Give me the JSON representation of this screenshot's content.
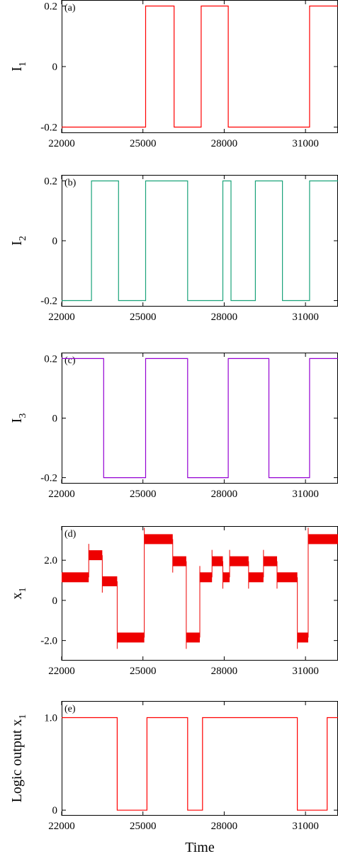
{
  "x_label": "Time",
  "chart_data": [
    {
      "type": "line",
      "panel_label": "(a)",
      "ylabel_main": "I",
      "ylabel_sub": "1",
      "color": "#ff0000",
      "xlim": [
        22000,
        32200
      ],
      "ylim": [
        -0.22,
        0.22
      ],
      "x_ticks": [
        22000,
        25000,
        28000,
        31000
      ],
      "x_tick_labels": [
        "22000",
        "25000",
        "28000",
        "31000"
      ],
      "y_ticks": [
        0.2,
        0,
        -0.2
      ],
      "y_tick_labels": [
        "0.2",
        "0",
        "-0.2"
      ],
      "x": [
        22000,
        25100,
        25100,
        26150,
        26150,
        27150,
        27150,
        28150,
        28150,
        31150,
        31150,
        32200
      ],
      "y": [
        -0.2,
        -0.2,
        0.2,
        0.2,
        -0.2,
        -0.2,
        0.2,
        0.2,
        -0.2,
        -0.2,
        0.2,
        0.2
      ],
      "noisy": false
    },
    {
      "type": "line",
      "panel_label": "(b)",
      "ylabel_main": "I",
      "ylabel_sub": "2",
      "color": "#1aa37a",
      "xlim": [
        22000,
        32200
      ],
      "ylim": [
        -0.22,
        0.22
      ],
      "x_ticks": [
        22000,
        25000,
        28000,
        31000
      ],
      "x_tick_labels": [
        "22000",
        "25000",
        "28000",
        "31000"
      ],
      "y_ticks": [
        0.2,
        0,
        -0.2
      ],
      "y_tick_labels": [
        "0.2",
        "0",
        "-0.2"
      ],
      "x": [
        22000,
        23100,
        23100,
        24100,
        24100,
        25100,
        25100,
        26650,
        26650,
        27950,
        27950,
        28250,
        28250,
        29150,
        29150,
        30150,
        30150,
        31150,
        31150,
        32200
      ],
      "y": [
        -0.2,
        -0.2,
        0.2,
        0.2,
        -0.2,
        -0.2,
        0.2,
        0.2,
        -0.2,
        -0.2,
        0.2,
        0.2,
        -0.2,
        -0.2,
        0.2,
        0.2,
        -0.2,
        -0.2,
        0.2,
        0.2
      ],
      "noisy": false
    },
    {
      "type": "line",
      "panel_label": "(c)",
      "ylabel_main": "I",
      "ylabel_sub": "3",
      "color": "#9400d3",
      "xlim": [
        22000,
        32200
      ],
      "ylim": [
        -0.22,
        0.22
      ],
      "x_ticks": [
        22000,
        25000,
        28000,
        31000
      ],
      "x_tick_labels": [
        "22000",
        "25000",
        "28000",
        "31000"
      ],
      "y_ticks": [
        0.2,
        0,
        -0.2
      ],
      "y_tick_labels": [
        "0.2",
        "0",
        "-0.2"
      ],
      "x": [
        22000,
        23550,
        23550,
        25100,
        25100,
        26650,
        26650,
        28150,
        28150,
        29650,
        29650,
        31150,
        31150,
        32200
      ],
      "y": [
        0.2,
        0.2,
        -0.2,
        -0.2,
        0.2,
        0.2,
        -0.2,
        -0.2,
        0.2,
        0.2,
        -0.2,
        -0.2,
        0.2,
        0.2
      ],
      "noisy": false
    },
    {
      "type": "line",
      "panel_label": "(d)",
      "ylabel_main": "x",
      "ylabel_sub": "1",
      "color": "#ee0000",
      "xlim": [
        22000,
        32200
      ],
      "ylim": [
        -3.0,
        3.7
      ],
      "x_ticks": [
        22000,
        25000,
        28000,
        31000
      ],
      "x_tick_labels": [
        "22000",
        "25000",
        "28000",
        "31000"
      ],
      "y_ticks": [
        2.0,
        0,
        -2.0
      ],
      "y_tick_labels": [
        "2.0",
        "0",
        "-2.0"
      ],
      "x": [
        22000,
        23000,
        23000,
        23500,
        23500,
        24050,
        24050,
        25050,
        25050,
        26100,
        26100,
        26600,
        26600,
        27100,
        27100,
        27550,
        27550,
        27950,
        27950,
        28200,
        28200,
        28900,
        28900,
        29450,
        29450,
        29950,
        29950,
        30700,
        30700,
        31100,
        31100,
        32200
      ],
      "y": [
        1.15,
        1.15,
        2.25,
        2.25,
        0.95,
        0.95,
        -1.85,
        -1.85,
        3.05,
        3.05,
        1.95,
        1.95,
        -1.85,
        -1.85,
        1.15,
        1.15,
        1.95,
        1.95,
        1.15,
        1.15,
        1.95,
        1.95,
        1.15,
        1.15,
        1.95,
        1.95,
        1.15,
        1.15,
        -1.85,
        -1.85,
        3.05,
        3.05
      ],
      "noisy": true
    },
    {
      "type": "line",
      "panel_label": "(e)",
      "ylabel_main": "Logic output x",
      "ylabel_sub": "1",
      "color": "#ff0000",
      "xlim": [
        22000,
        32200
      ],
      "ylim": [
        -0.06,
        1.18
      ],
      "x_ticks": [
        22000,
        25000,
        28000,
        31000
      ],
      "x_tick_labels": [
        "22000",
        "25000",
        "28000",
        "31000"
      ],
      "y_ticks": [
        1.0,
        0
      ],
      "y_tick_labels": [
        "1.0",
        "0"
      ],
      "x": [
        22000,
        24050,
        24050,
        25150,
        25150,
        26650,
        26650,
        27200,
        27200,
        30700,
        30700,
        31800,
        31800,
        32200
      ],
      "y": [
        1,
        1,
        0,
        0,
        1,
        1,
        0,
        0,
        1,
        1,
        0,
        0,
        1,
        1
      ],
      "noisy": false
    }
  ]
}
